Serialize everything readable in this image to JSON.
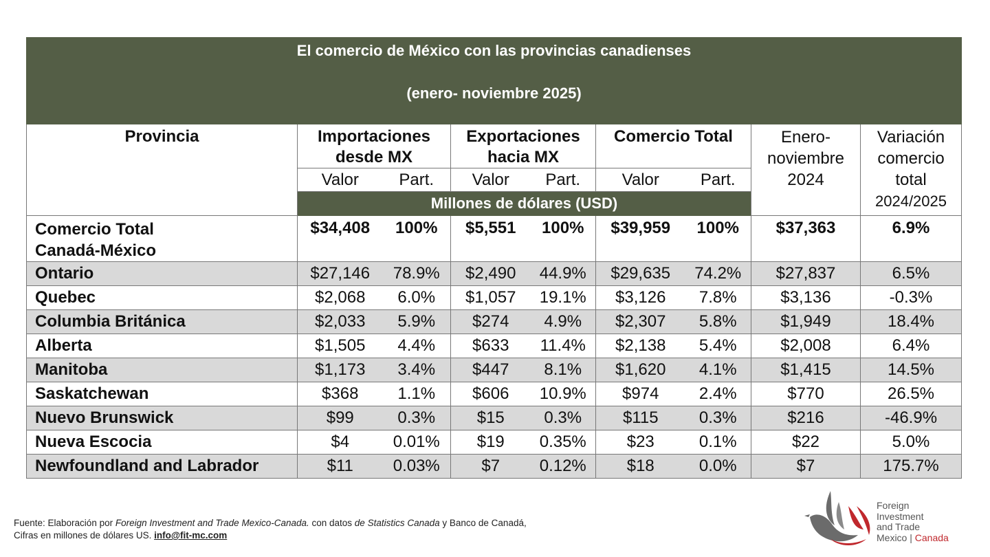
{
  "title": {
    "line1": "El comercio de México con las provincias canadienses",
    "line2": "(enero- noviembre 2025)"
  },
  "headers": {
    "provincia": "Provincia",
    "importaciones": [
      "Importaciones",
      "desde MX"
    ],
    "exportaciones": [
      "Exportaciones",
      "hacia MX"
    ],
    "comercio_total": "Comercio Total",
    "enero_2024": [
      "Enero-",
      "noviembre",
      "2024"
    ],
    "variacion": [
      "Variación",
      "comercio",
      "total",
      "2024/2025"
    ],
    "valor": "Valor",
    "part": "Part.",
    "units": "Millones de dólares (USD)"
  },
  "total_row": {
    "label": [
      "Comercio Total",
      "Canadá-México"
    ],
    "imp_valor": "$34,408",
    "imp_part": "100%",
    "exp_valor": "$5,551",
    "exp_part": "100%",
    "tot_valor": "$39,959",
    "tot_part": "100%",
    "prev_2024": "$37,363",
    "variacion": "6.9%"
  },
  "rows": [
    {
      "provincia": "Ontario",
      "imp_valor": "$27,146",
      "imp_part": "78.9%",
      "exp_valor": "$2,490",
      "exp_part": "44.9%",
      "tot_valor": "$29,635",
      "tot_part": "74.2%",
      "prev_2024": "$27,837",
      "variacion": "6.5%"
    },
    {
      "provincia": "Quebec",
      "imp_valor": "$2,068",
      "imp_part": "6.0%",
      "exp_valor": "$1,057",
      "exp_part": "19.1%",
      "tot_valor": "$3,126",
      "tot_part": "7.8%",
      "prev_2024": "$3,136",
      "variacion": "-0.3%"
    },
    {
      "provincia": "Columbia Británica",
      "imp_valor": "$2,033",
      "imp_part": "5.9%",
      "exp_valor": "$274",
      "exp_part": "4.9%",
      "tot_valor": "$2,307",
      "tot_part": "5.8%",
      "prev_2024": "$1,949",
      "variacion": "18.4%"
    },
    {
      "provincia": "Alberta",
      "imp_valor": "$1,505",
      "imp_part": "4.4%",
      "exp_valor": "$633",
      "exp_part": "11.4%",
      "tot_valor": "$2,138",
      "tot_part": "5.4%",
      "prev_2024": "$2,008",
      "variacion": "6.4%"
    },
    {
      "provincia": "Manitoba",
      "imp_valor": "$1,173",
      "imp_part": "3.4%",
      "exp_valor": "$447",
      "exp_part": "8.1%",
      "tot_valor": "$1,620",
      "tot_part": "4.1%",
      "prev_2024": "$1,415",
      "variacion": "14.5%"
    },
    {
      "provincia": "Saskatchewan",
      "imp_valor": "$368",
      "imp_part": "1.1%",
      "exp_valor": "$606",
      "exp_part": "10.9%",
      "tot_valor": "$974",
      "tot_part": "2.4%",
      "prev_2024": "$770",
      "variacion": "26.5%"
    },
    {
      "provincia": "Nuevo Brunswick",
      "imp_valor": "$99",
      "imp_part": "0.3%",
      "exp_valor": "$15",
      "exp_part": "0.3%",
      "tot_valor": "$115",
      "tot_part": "0.3%",
      "prev_2024": "$216",
      "variacion": "-46.9%"
    },
    {
      "provincia": "Nueva Escocia",
      "imp_valor": "$4",
      "imp_part": "0.01%",
      "exp_valor": "$19",
      "exp_part": "0.35%",
      "tot_valor": "$23",
      "tot_part": "0.1%",
      "prev_2024": "$22",
      "variacion": "5.0%"
    },
    {
      "provincia": "Newfoundland and Labrador",
      "imp_valor": "$11",
      "imp_part": "0.03%",
      "exp_valor": "$7",
      "exp_part": "0.12%",
      "tot_valor": "$18",
      "tot_part": "0.0%",
      "prev_2024": "$7",
      "variacion": "175.7%"
    }
  ],
  "footer": {
    "p1": "Fuente: Elaboración por ",
    "i1": "Foreign Investment and Trade Mexico-Canada.",
    "p2": " con datos ",
    "i2": "de Statistics Canada",
    "p3": " y Banco de Canadá,",
    "line2": "Cifras en millones de dólares US.  ",
    "email": "info@fit-mc.com"
  },
  "logo": {
    "line1": "Foreign",
    "line2": "Investment",
    "line3": "and Trade",
    "line4a": "Mexico",
    "sep": " | ",
    "line4b": "Canada",
    "colors": {
      "red": "#c0282d",
      "grey": "#6b6b6b"
    }
  }
}
